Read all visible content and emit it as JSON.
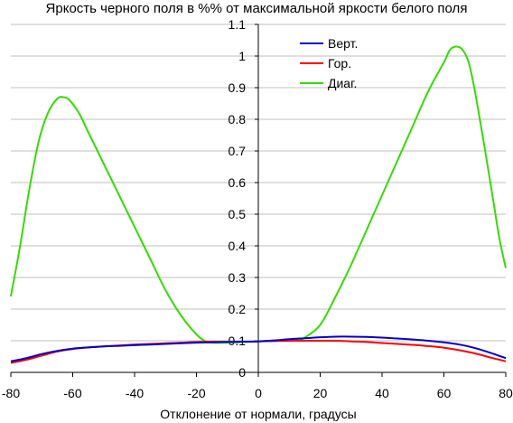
{
  "chart_data": {
    "type": "line",
    "title": "Яркость черного поля в %% от максимальной яркости белого поля",
    "xlabel": "Отклонение от нормали, градусы",
    "ylabel": "",
    "xlim": [
      -80,
      80
    ],
    "ylim": [
      0,
      1.1
    ],
    "x_ticks": [
      "-80",
      "-60",
      "-40",
      "-20",
      "0",
      "20",
      "40",
      "60",
      "80"
    ],
    "y_ticks": [
      "0",
      "0.1",
      "0.2",
      "0.3",
      "0.4",
      "0.5",
      "0.6",
      "0.7",
      "0.8",
      "0.9",
      "1",
      "1.1"
    ],
    "grid": "horizontal",
    "legend_position": "top-center-right",
    "series": [
      {
        "name": "Верт.",
        "color": "#0000cc",
        "points": [
          [
            -80,
            0.035
          ],
          [
            -75,
            0.045
          ],
          [
            -70,
            0.058
          ],
          [
            -65,
            0.068
          ],
          [
            -60,
            0.075
          ],
          [
            -55,
            0.079
          ],
          [
            -50,
            0.082
          ],
          [
            -45,
            0.084
          ],
          [
            -40,
            0.086
          ],
          [
            -35,
            0.088
          ],
          [
            -30,
            0.09
          ],
          [
            -25,
            0.092
          ],
          [
            -20,
            0.094
          ],
          [
            -15,
            0.095
          ],
          [
            -10,
            0.096
          ],
          [
            -5,
            0.097
          ],
          [
            0,
            0.098
          ],
          [
            5,
            0.101
          ],
          [
            10,
            0.105
          ],
          [
            15,
            0.108
          ],
          [
            20,
            0.111
          ],
          [
            25,
            0.113
          ],
          [
            30,
            0.113
          ],
          [
            35,
            0.112
          ],
          [
            40,
            0.11
          ],
          [
            45,
            0.107
          ],
          [
            50,
            0.104
          ],
          [
            55,
            0.1
          ],
          [
            60,
            0.095
          ],
          [
            65,
            0.088
          ],
          [
            70,
            0.077
          ],
          [
            75,
            0.062
          ],
          [
            80,
            0.045
          ]
        ]
      },
      {
        "name": "Гор.",
        "color": "#ff0000",
        "points": [
          [
            -80,
            0.03
          ],
          [
            -75,
            0.04
          ],
          [
            -70,
            0.053
          ],
          [
            -65,
            0.066
          ],
          [
            -60,
            0.074
          ],
          [
            -55,
            0.079
          ],
          [
            -50,
            0.082
          ],
          [
            -45,
            0.085
          ],
          [
            -40,
            0.088
          ],
          [
            -35,
            0.09
          ],
          [
            -30,
            0.092
          ],
          [
            -25,
            0.094
          ],
          [
            -20,
            0.096
          ],
          [
            -15,
            0.097
          ],
          [
            -10,
            0.097
          ],
          [
            -5,
            0.097
          ],
          [
            0,
            0.098
          ],
          [
            5,
            0.099
          ],
          [
            10,
            0.1
          ],
          [
            15,
            0.1
          ],
          [
            20,
            0.1
          ],
          [
            25,
            0.1
          ],
          [
            30,
            0.098
          ],
          [
            35,
            0.096
          ],
          [
            40,
            0.093
          ],
          [
            45,
            0.09
          ],
          [
            50,
            0.087
          ],
          [
            55,
            0.083
          ],
          [
            60,
            0.078
          ],
          [
            65,
            0.07
          ],
          [
            70,
            0.06
          ],
          [
            75,
            0.047
          ],
          [
            80,
            0.035
          ]
        ]
      },
      {
        "name": "Диаг.",
        "color": "#33dd00",
        "points": [
          [
            -80,
            0.24
          ],
          [
            -77,
            0.4
          ],
          [
            -74,
            0.58
          ],
          [
            -71,
            0.73
          ],
          [
            -68,
            0.82
          ],
          [
            -65,
            0.865
          ],
          [
            -63,
            0.87
          ],
          [
            -61,
            0.86
          ],
          [
            -58,
            0.82
          ],
          [
            -55,
            0.76
          ],
          [
            -50,
            0.66
          ],
          [
            -45,
            0.56
          ],
          [
            -40,
            0.46
          ],
          [
            -35,
            0.36
          ],
          [
            -30,
            0.26
          ],
          [
            -25,
            0.18
          ],
          [
            -20,
            0.12
          ],
          [
            -17,
            0.098
          ],
          [
            -15,
            0.094
          ],
          [
            -10,
            0.094
          ],
          [
            -5,
            0.096
          ],
          [
            0,
            0.098
          ],
          [
            5,
            0.1
          ],
          [
            10,
            0.1
          ],
          [
            13,
            0.104
          ],
          [
            15,
            0.11
          ],
          [
            20,
            0.15
          ],
          [
            25,
            0.24
          ],
          [
            30,
            0.34
          ],
          [
            35,
            0.45
          ],
          [
            40,
            0.56
          ],
          [
            45,
            0.67
          ],
          [
            50,
            0.78
          ],
          [
            55,
            0.89
          ],
          [
            60,
            0.98
          ],
          [
            62,
            1.02
          ],
          [
            64,
            1.03
          ],
          [
            66,
            1.02
          ],
          [
            68,
            0.98
          ],
          [
            70,
            0.89
          ],
          [
            73,
            0.72
          ],
          [
            76,
            0.54
          ],
          [
            78,
            0.42
          ],
          [
            80,
            0.33
          ]
        ]
      }
    ]
  }
}
